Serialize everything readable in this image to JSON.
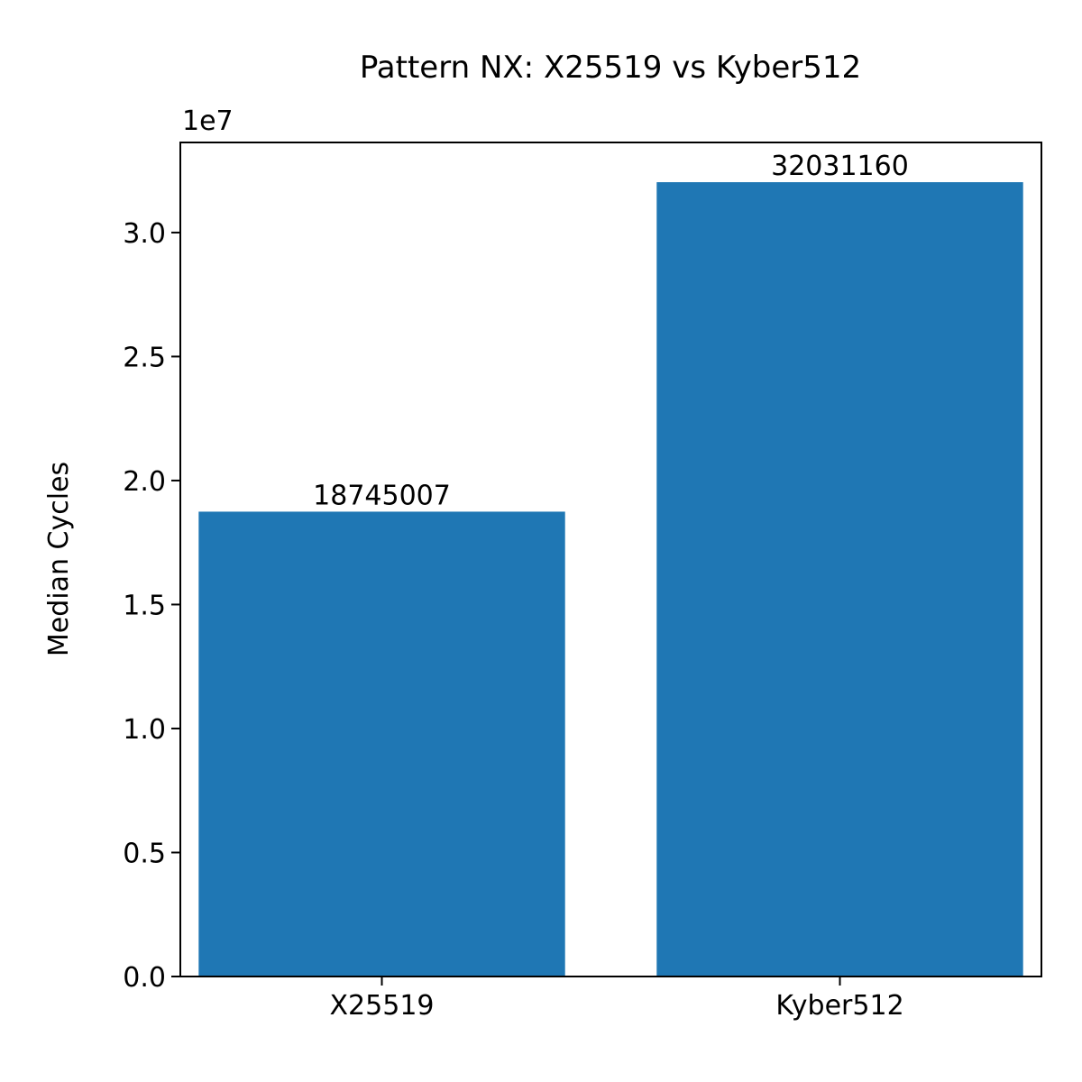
{
  "chart_data": {
    "type": "bar",
    "title": "Pattern NX: X25519 vs Kyber512",
    "xlabel": "",
    "ylabel": "Median Cycles",
    "categories": [
      "X25519",
      "Kyber512"
    ],
    "values": [
      18745007,
      32031160
    ],
    "value_labels": [
      "18745007",
      "32031160"
    ],
    "ylim": [
      0,
      33632718
    ],
    "yticks": [
      0,
      5000000,
      10000000,
      15000000,
      20000000,
      25000000,
      30000000
    ],
    "ytick_labels": [
      "0.0",
      "0.5",
      "1.0",
      "1.5",
      "2.0",
      "2.5",
      "3.0"
    ],
    "y_offset_label": "1e7",
    "bar_color": "#1f77b4",
    "grid": false,
    "legend": "none"
  }
}
